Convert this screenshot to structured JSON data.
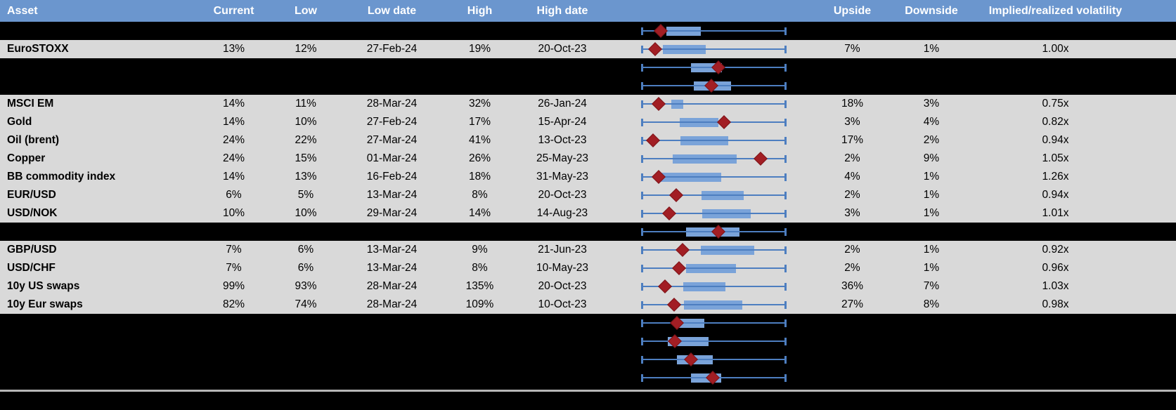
{
  "colors": {
    "header_bg": "#6b96ce",
    "header_text": "#ffffff",
    "data_row_bg": "#d9d9d9",
    "redacted_row_bg": "#000000",
    "box_fill": "#7aa3d9",
    "whisker": "#4d7ec0",
    "marker": "#a21e24",
    "footer_rule": "#b7b7b7",
    "text": "#000000"
  },
  "chart_data": {
    "type": "table",
    "columns": [
      "Asset",
      "Current",
      "Low",
      "Low date",
      "High",
      "High date",
      "",
      "Upside",
      "Downside",
      "Implied/realized volatility"
    ],
    "boxplot_note": "per-row horizontal box plot; values normalized 0-1 across plot width; whiskers span full range in every row; diamond = marker",
    "rows": [
      {
        "redacted": true,
        "box": {
          "lo": 0,
          "q1": 0.17,
          "q3": 0.41,
          "hi": 1,
          "marker": 0.13
        }
      },
      {
        "redacted": false,
        "asset": "EuroSTOXX",
        "current": "13%",
        "low": "12%",
        "low_date": "27-Feb-24",
        "high": "19%",
        "high_date": "20-Oct-23",
        "upside": "7%",
        "downside": "1%",
        "iv_ratio": "1.00x",
        "box": {
          "lo": 0,
          "q1": 0.146,
          "q3": 0.444,
          "hi": 1,
          "marker": 0.093
        }
      },
      {
        "redacted": true,
        "box": {
          "lo": 0,
          "q1": 0.34,
          "q3": 0.556,
          "hi": 1,
          "marker": 0.532
        }
      },
      {
        "redacted": true,
        "box": {
          "lo": 0,
          "q1": 0.36,
          "q3": 0.62,
          "hi": 1,
          "marker": 0.483
        }
      },
      {
        "redacted": false,
        "asset": "MSCI EM",
        "current": "14%",
        "low": "11%",
        "low_date": "28-Mar-24",
        "high": "32%",
        "high_date": "26-Jan-24",
        "upside": "18%",
        "downside": "3%",
        "iv_ratio": "0.75x",
        "box": {
          "lo": 0,
          "q1": 0.205,
          "q3": 0.288,
          "hi": 1,
          "marker": 0.117
        }
      },
      {
        "redacted": false,
        "asset": "Gold",
        "current": "14%",
        "low": "10%",
        "low_date": "27-Feb-24",
        "high": "17%",
        "high_date": "15-Apr-24",
        "upside": "3%",
        "downside": "4%",
        "iv_ratio": "0.82x",
        "box": {
          "lo": 0,
          "q1": 0.263,
          "q3": 0.532,
          "hi": 1,
          "marker": 0.571
        }
      },
      {
        "redacted": false,
        "asset": "Oil (brent)",
        "current": "24%",
        "low": "22%",
        "low_date": "27-Mar-24",
        "high": "41%",
        "high_date": "13-Oct-23",
        "upside": "17%",
        "downside": "2%",
        "iv_ratio": "0.94x",
        "box": {
          "lo": 0,
          "q1": 0.268,
          "q3": 0.6,
          "hi": 1,
          "marker": 0.078
        }
      },
      {
        "redacted": false,
        "asset": "Copper",
        "current": "24%",
        "low": "15%",
        "low_date": "01-Mar-24",
        "high": "26%",
        "high_date": "25-May-23",
        "upside": "2%",
        "downside": "9%",
        "iv_ratio": "1.05x",
        "box": {
          "lo": 0,
          "q1": 0.215,
          "q3": 0.66,
          "hi": 1,
          "marker": 0.824
        }
      },
      {
        "redacted": false,
        "asset": "BB commodity index",
        "current": "14%",
        "low": "13%",
        "low_date": "16-Feb-24",
        "high": "18%",
        "high_date": "31-May-23",
        "upside": "4%",
        "downside": "1%",
        "iv_ratio": "1.26x",
        "box": {
          "lo": 0,
          "q1": 0.132,
          "q3": 0.551,
          "hi": 1,
          "marker": 0.117
        }
      },
      {
        "redacted": false,
        "asset": "EUR/USD",
        "current": "6%",
        "low": "5%",
        "low_date": "13-Mar-24",
        "high": "8%",
        "high_date": "20-Oct-23",
        "upside": "2%",
        "downside": "1%",
        "iv_ratio": "0.94x",
        "box": {
          "lo": 0,
          "q1": 0.415,
          "q3": 0.707,
          "hi": 1,
          "marker": 0.239
        }
      },
      {
        "redacted": false,
        "asset": "USD/NOK",
        "current": "10%",
        "low": "10%",
        "low_date": "29-Mar-24",
        "high": "14%",
        "high_date": "14-Aug-23",
        "upside": "3%",
        "downside": "1%",
        "iv_ratio": "1.01x",
        "box": {
          "lo": 0,
          "q1": 0.42,
          "q3": 0.756,
          "hi": 1,
          "marker": 0.19
        }
      },
      {
        "redacted": true,
        "box": {
          "lo": 0,
          "q1": 0.307,
          "q3": 0.678,
          "hi": 1,
          "marker": 0.532
        }
      },
      {
        "redacted": false,
        "asset": "GBP/USD",
        "current": "7%",
        "low": "6%",
        "low_date": "13-Mar-24",
        "high": "9%",
        "high_date": "21-Jun-23",
        "upside": "2%",
        "downside": "1%",
        "iv_ratio": "0.92x",
        "box": {
          "lo": 0,
          "q1": 0.41,
          "q3": 0.78,
          "hi": 1,
          "marker": 0.283
        }
      },
      {
        "redacted": false,
        "asset": "USD/CHF",
        "current": "7%",
        "low": "6%",
        "low_date": "13-Mar-24",
        "high": "8%",
        "high_date": "10-May-23",
        "upside": "2%",
        "downside": "1%",
        "iv_ratio": "0.96x",
        "box": {
          "lo": 0,
          "q1": 0.307,
          "q3": 0.653,
          "hi": 1,
          "marker": 0.258
        }
      },
      {
        "redacted": false,
        "asset": "10y US swaps",
        "current": "99%",
        "low": "93%",
        "low_date": "28-Mar-24",
        "high": "135%",
        "high_date": "20-Oct-23",
        "upside": "36%",
        "downside": "7%",
        "iv_ratio": "1.03x",
        "box": {
          "lo": 0,
          "q1": 0.288,
          "q3": 0.58,
          "hi": 1,
          "marker": 0.161
        }
      },
      {
        "redacted": false,
        "asset": "10y Eur swaps",
        "current": "82%",
        "low": "74%",
        "low_date": "28-Mar-24",
        "high": "109%",
        "high_date": "10-Oct-23",
        "upside": "27%",
        "downside": "8%",
        "iv_ratio": "0.98x",
        "box": {
          "lo": 0,
          "q1": 0.293,
          "q3": 0.698,
          "hi": 1,
          "marker": 0.224
        }
      },
      {
        "redacted": true,
        "box": {
          "lo": 0,
          "q1": 0.229,
          "q3": 0.434,
          "hi": 1,
          "marker": 0.244
        }
      },
      {
        "redacted": true,
        "box": {
          "lo": 0,
          "q1": 0.18,
          "q3": 0.463,
          "hi": 1,
          "marker": 0.229
        }
      },
      {
        "redacted": true,
        "box": {
          "lo": 0,
          "q1": 0.244,
          "q3": 0.493,
          "hi": 1,
          "marker": 0.341
        }
      },
      {
        "redacted": true,
        "box": {
          "lo": 0,
          "q1": 0.341,
          "q3": 0.551,
          "hi": 1,
          "marker": 0.493
        }
      }
    ]
  }
}
